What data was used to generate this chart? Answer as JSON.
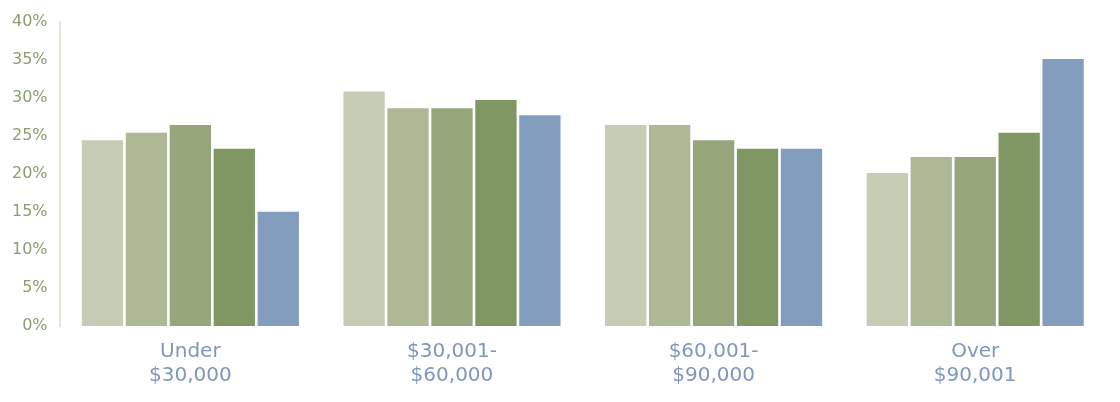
{
  "chart_data": {
    "type": "bar",
    "categories": [
      "Under\n$30,000",
      "$30,001-\n$60,000",
      "$60,001-\n$90,000",
      "Over\n$90,001"
    ],
    "series": [
      {
        "color": "#c6cdb4",
        "values": [
          24.4,
          30.8,
          26.4,
          20.1
        ]
      },
      {
        "color": "#afb895",
        "values": [
          25.4,
          28.6,
          26.4,
          22.2
        ]
      },
      {
        "color": "#97a57b",
        "values": [
          26.4,
          28.6,
          24.4,
          22.2
        ]
      },
      {
        "color": "#809763",
        "values": [
          23.3,
          29.7,
          23.3,
          25.4
        ]
      },
      {
        "color": "#829dbe",
        "values": [
          15,
          27.7,
          23.3,
          35.1
        ]
      }
    ],
    "ylim": [
      0,
      40
    ],
    "yticks": [
      {
        "value": 0,
        "label": "0%"
      },
      {
        "value": 5,
        "label": "5%"
      },
      {
        "value": 10,
        "label": "10%"
      },
      {
        "value": 15,
        "label": "15%"
      },
      {
        "value": 20,
        "label": "20%"
      },
      {
        "value": 25,
        "label": "25%"
      },
      {
        "value": 30,
        "label": "30%"
      },
      {
        "value": 35,
        "label": "35%"
      },
      {
        "value": 40,
        "label": "40%"
      }
    ],
    "grid": false,
    "legend": false
  }
}
